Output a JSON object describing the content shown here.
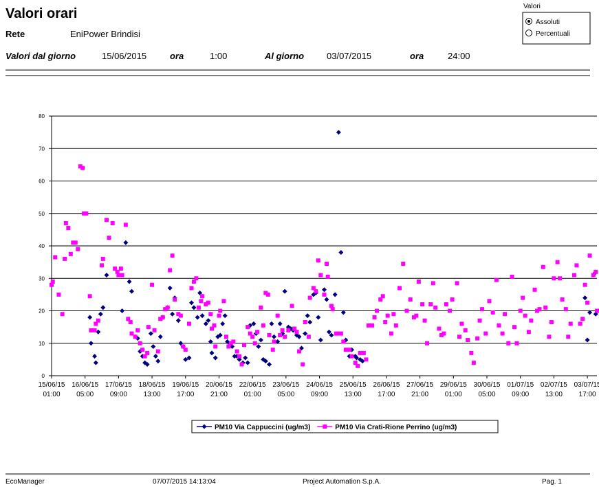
{
  "header": {
    "title": "Valori orari",
    "network_label": "Rete",
    "network": "EniPower Brindisi",
    "from_label": "Valori dal giorno",
    "from_date": "15/06/2015",
    "time_label": "ora",
    "from_time": "1:00",
    "to_label": "Al giorno",
    "to_date": "03/07/2015",
    "to_time": "24:00"
  },
  "options": {
    "group_label": "Valori",
    "choices": [
      "Assoluti",
      "Percentuali"
    ],
    "selected": 0
  },
  "chart_data": {
    "type": "scatter",
    "xlim": [
      0,
      456
    ],
    "ylim": [
      0,
      80
    ],
    "yticks": [
      0,
      10,
      20,
      30,
      40,
      50,
      60,
      70,
      80
    ],
    "grid": true,
    "xticks": [
      {
        "value": 0,
        "label": "15/06/15\n01:00"
      },
      {
        "value": 28,
        "label": "16/06/15\n05:00"
      },
      {
        "value": 56,
        "label": "17/06/15\n09:00"
      },
      {
        "value": 84,
        "label": "18/06/15\n13:00"
      },
      {
        "value": 112,
        "label": "19/06/15\n17:00"
      },
      {
        "value": 140,
        "label": "20/06/15\n21:00"
      },
      {
        "value": 168,
        "label": "22/06/15\n01:00"
      },
      {
        "value": 196,
        "label": "23/06/15\n05:00"
      },
      {
        "value": 224,
        "label": "24/06/15\n09:00"
      },
      {
        "value": 252,
        "label": "25/06/15\n13:00"
      },
      {
        "value": 280,
        "label": "26/06/15\n17:00"
      },
      {
        "value": 308,
        "label": "27/06/15\n21:00"
      },
      {
        "value": 336,
        "label": "29/06/15\n01:00"
      },
      {
        "value": 364,
        "label": "30/06/15\n05:00"
      },
      {
        "value": 392,
        "label": "01/07/15\n09:00"
      },
      {
        "value": 420,
        "label": "02/07/15\n13:00"
      },
      {
        "value": 448,
        "label": "03/07/15\n17:00"
      }
    ],
    "series": [
      {
        "name": "PM10 Via Cappuccini (ug/m3)",
        "color": "#000080",
        "marker": "diamond",
        "x": [
          32,
          33,
          36,
          37,
          39,
          41,
          43,
          46,
          59,
          62,
          65,
          67,
          70,
          72,
          74,
          76,
          78,
          80,
          83,
          85,
          87,
          89,
          91,
          93,
          97,
          99,
          101,
          103,
          106,
          108,
          110,
          112,
          115,
          117,
          119,
          122,
          124,
          126,
          129,
          131,
          133,
          134,
          137,
          139,
          141,
          143,
          145,
          147,
          149,
          151,
          153,
          155,
          157,
          160,
          162,
          164,
          166,
          169,
          171,
          173,
          175,
          177,
          179,
          182,
          184,
          186,
          189,
          191,
          193,
          195,
          198,
          200,
          202,
          205,
          207,
          209,
          212,
          214,
          216,
          219,
          221,
          223,
          225,
          228,
          230,
          232,
          234,
          237,
          240,
          242,
          244,
          246,
          249,
          251,
          254,
          255,
          258,
          260,
          446,
          448,
          450,
          454,
          455
        ],
        "values": [
          18,
          10,
          6,
          4,
          13.5,
          19,
          21,
          31,
          20,
          41,
          29,
          26,
          12,
          11.5,
          7.5,
          6,
          4,
          3.5,
          13,
          9,
          6,
          4.5,
          12,
          18,
          21,
          27,
          19,
          24,
          17,
          10,
          9,
          5,
          5.5,
          22.5,
          21,
          18,
          25.5,
          18.5,
          16,
          17,
          10.5,
          7,
          5.5,
          12,
          12.5,
          16,
          18.5,
          10.5,
          10,
          9,
          6,
          6,
          5,
          4,
          5.5,
          4,
          15.5,
          16,
          13,
          9,
          11,
          5,
          4.5,
          3.5,
          16,
          12,
          10.5,
          16,
          13,
          26,
          15,
          14.5,
          14,
          12.5,
          12,
          8.5,
          13,
          18.5,
          16.5,
          25,
          25.5,
          18,
          11,
          26.5,
          23.5,
          13.5,
          12.5,
          25,
          75,
          38,
          19.5,
          11,
          6,
          8,
          6,
          5.5,
          5,
          4.5,
          24,
          11,
          19.5,
          31.5,
          19
        ]
      },
      {
        "name": "PM10 Via Crati-Rione Perrino (ug/m3)",
        "color": "#ff00ff",
        "marker": "square",
        "x": [
          0,
          1,
          3,
          6,
          9,
          11,
          12,
          14,
          16,
          18,
          20,
          22,
          24,
          26,
          27,
          29,
          32,
          33,
          36,
          37,
          39,
          42,
          43,
          46,
          48,
          51,
          53,
          55,
          56,
          58,
          59,
          62,
          64,
          66,
          67,
          70,
          72,
          74,
          76,
          78,
          80,
          81,
          84,
          86,
          89,
          91,
          93,
          95,
          97,
          99,
          101,
          103,
          106,
          108,
          110,
          112,
          115,
          117,
          119,
          121,
          123,
          125,
          126,
          129,
          131,
          133,
          134,
          136,
          137,
          140,
          141,
          144,
          146,
          148,
          150,
          152,
          155,
          157,
          159,
          161,
          164,
          166,
          168,
          170,
          172,
          175,
          177,
          179,
          181,
          182,
          185,
          186,
          189,
          191,
          193,
          195,
          198,
          201,
          203,
          205,
          207,
          210,
          212,
          215,
          216,
          219,
          221,
          223,
          225,
          228,
          230,
          231,
          234,
          235,
          238,
          239,
          242,
          244,
          246,
          249,
          251,
          254,
          256,
          258,
          261,
          263,
          265,
          268,
          270,
          272,
          275,
          277,
          279,
          281,
          284,
          286,
          288,
          291,
          294,
          297,
          300,
          303,
          305,
          307,
          310,
          312,
          314,
          317,
          319,
          321,
          324,
          326,
          328,
          330,
          333,
          335,
          339,
          341,
          343,
          346,
          348,
          351,
          353,
          356,
          358,
          360,
          363,
          366,
          369,
          372,
          374,
          377,
          379,
          382,
          385,
          387,
          389,
          392,
          394,
          396,
          399,
          401,
          404,
          406,
          408,
          411,
          413,
          416,
          418,
          420,
          423,
          425,
          427,
          430,
          432,
          434,
          437,
          439,
          442,
          444,
          446,
          448,
          450,
          453,
          455,
          456
        ],
        "values": [
          28,
          29,
          36.5,
          25,
          19,
          36,
          47,
          45.5,
          37.5,
          41,
          41,
          39,
          64.5,
          64,
          50,
          50,
          24.5,
          14,
          14,
          16,
          17,
          34,
          36,
          48,
          42.5,
          47,
          33,
          32,
          31,
          33,
          31,
          46.5,
          17.5,
          16.5,
          13,
          12,
          14,
          10,
          8,
          6,
          7,
          15,
          28,
          14,
          7.5,
          17.5,
          18,
          20.5,
          21,
          32.5,
          37,
          23.5,
          19,
          18.5,
          9,
          8,
          16,
          27,
          29,
          30,
          21,
          23,
          24.5,
          22,
          22.5,
          19,
          14.5,
          15.5,
          9,
          18.5,
          20,
          23,
          12,
          9,
          10,
          10.5,
          7.5,
          6,
          3.5,
          9.5,
          15,
          13,
          12,
          10,
          13.5,
          21,
          15.5,
          25.5,
          25,
          12.5,
          8,
          10.5,
          18.5,
          12.5,
          14,
          12,
          14,
          21.5,
          14.5,
          13.5,
          7.5,
          3.5,
          16.5,
          12,
          24,
          27,
          26,
          35.5,
          31,
          25,
          34.5,
          30.5,
          21.5,
          20.5,
          13,
          13,
          13,
          10.5,
          8,
          8,
          6,
          4,
          3,
          7,
          7,
          5,
          15.5,
          15.5,
          18,
          20,
          23.5,
          24.5,
          16.5,
          18.5,
          13,
          19,
          15.5,
          27,
          34.5,
          20,
          23.5,
          18,
          18.5,
          29,
          22,
          17,
          10,
          22,
          28.5,
          21,
          14.5,
          12.5,
          13,
          22,
          20,
          23.5,
          28.5,
          12,
          16,
          14,
          11,
          7,
          4,
          11.5,
          17,
          20.5,
          13,
          23,
          19.5,
          29.5,
          15.5,
          13,
          19,
          10,
          30.5,
          15,
          10,
          20,
          24,
          18.5,
          13.5,
          17,
          26.5,
          20,
          20.5,
          33.5,
          21,
          12,
          16.5,
          30,
          35,
          30,
          23.5,
          20.5,
          12,
          16,
          31,
          34,
          16,
          17.5,
          28,
          22.5,
          37,
          31,
          32,
          20
        ]
      }
    ]
  },
  "footer": {
    "app": "EcoManager",
    "timestamp": "07/07/2015 14:13:04",
    "company": "Project Automation S.p.A.",
    "page": "Pag. 1"
  }
}
